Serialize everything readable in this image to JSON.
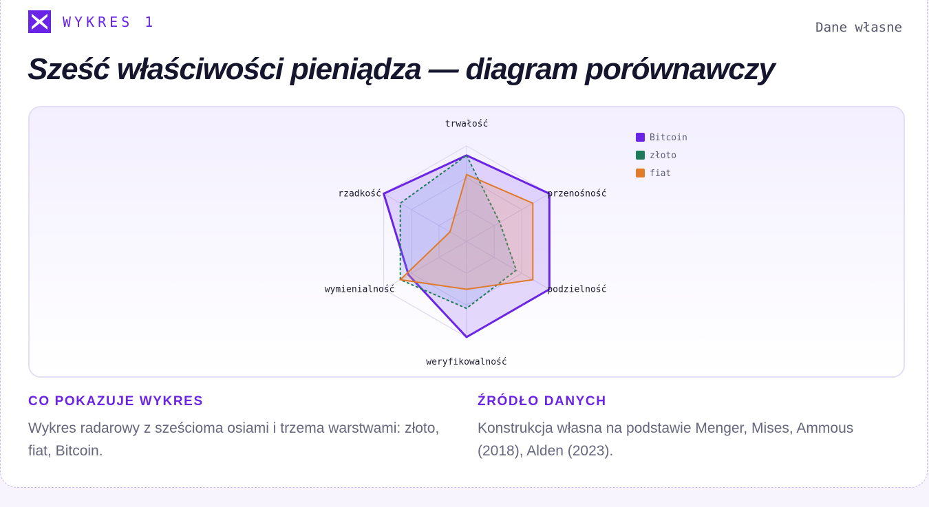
{
  "header": {
    "kicker": "WYKRES 1",
    "source_label": "Dane własne",
    "title": "Sześć właściwości pieniądza — diagram porównawczy"
  },
  "chart_data": {
    "type": "radar",
    "axes": [
      "trwałość",
      "przenośność",
      "podzielność",
      "weryfikowalność",
      "wymienialność",
      "rzadkość"
    ],
    "range": [
      0,
      10
    ],
    "grid_levels": 3,
    "legend_position": "top-right",
    "series": [
      {
        "name": "Bitcoin",
        "values": [
          9,
          10,
          10,
          10,
          7,
          10
        ],
        "color": "#6a24e6",
        "fill": "rgba(140,90,240,0.22)",
        "dash": ""
      },
      {
        "name": "złoto",
        "values": [
          9,
          4,
          6,
          7,
          8,
          8
        ],
        "color": "#1f7a5a",
        "fill": "rgba(120,150,230,0.22)",
        "dash": "4 3"
      },
      {
        "name": "fiat",
        "values": [
          7,
          8,
          8,
          5,
          8,
          2
        ],
        "color": "#e07b2a",
        "fill": "rgba(232,140,90,0.25)",
        "dash": ""
      }
    ]
  },
  "notes": {
    "left_title": "CO POKAZUJE WYKRES",
    "left_text": "Wykres radarowy z sześcioma osiami i trzema warstwami: złoto, fiat, Bitcoin.",
    "right_title": "ŹRÓDŁO DANYCH",
    "right_text": "Konstrukcja własna na podstawie Menger, Mises, Ammous (2018), Alden (2023)."
  }
}
